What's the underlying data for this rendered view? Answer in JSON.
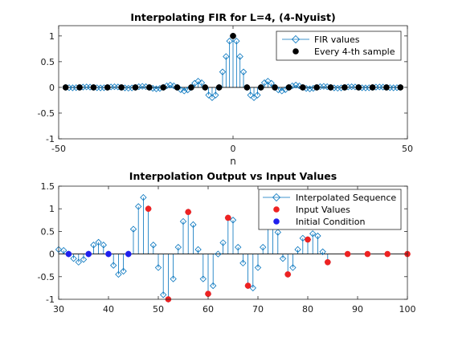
{
  "chart_data": [
    {
      "type": "stem",
      "title": "Interpolating FIR for L=4,  (4-Nyuist)",
      "xlabel": "n",
      "ylabel": "",
      "xlim": [
        -50,
        50
      ],
      "ylim": [
        -1,
        1.2
      ],
      "xticks": [
        "-50",
        "0",
        "50"
      ],
      "yticks": [
        "-1",
        "-0.5",
        "0",
        "0.5",
        "1"
      ],
      "legend_position": "top-right",
      "colors": {
        "fir": "#0072bd",
        "sample": "#000000"
      },
      "series": [
        {
          "name": "FIR values",
          "marker": "diamond-open",
          "x": [
            -48,
            -47,
            -46,
            -45,
            -44,
            -43,
            -42,
            -41,
            -40,
            -39,
            -38,
            -37,
            -36,
            -35,
            -34,
            -33,
            -32,
            -31,
            -30,
            -29,
            -28,
            -27,
            -26,
            -25,
            -24,
            -23,
            -22,
            -21,
            -20,
            -19,
            -18,
            -17,
            -16,
            -15,
            -14,
            -13,
            -12,
            -11,
            -10,
            -9,
            -8,
            -7,
            -6,
            -5,
            -4,
            -3,
            -2,
            -1,
            0,
            1,
            2,
            3,
            4,
            5,
            6,
            7,
            8,
            9,
            10,
            11,
            12,
            13,
            14,
            15,
            16,
            17,
            18,
            19,
            20,
            21,
            22,
            23,
            24,
            25,
            26,
            27,
            28,
            29,
            30,
            31,
            32,
            33,
            34,
            35,
            36,
            37,
            38,
            39,
            40,
            41,
            42,
            43,
            44,
            45,
            46,
            47,
            48
          ],
          "values": [
            0,
            -0.005,
            -0.008,
            -0.005,
            0,
            0.005,
            0.008,
            0.005,
            0,
            -0.007,
            -0.01,
            -0.007,
            0,
            0.008,
            0.012,
            0.008,
            0,
            -0.01,
            -0.015,
            -0.01,
            0,
            0.013,
            0.02,
            0.014,
            0,
            -0.018,
            -0.028,
            -0.02,
            0,
            0.03,
            0.045,
            0.03,
            0,
            -0.045,
            -0.07,
            -0.05,
            0,
            0.08,
            0.12,
            0.09,
            0,
            -0.15,
            -0.2,
            -0.15,
            0,
            0.3,
            0.6,
            0.9,
            1,
            0.9,
            0.6,
            0.3,
            0,
            -0.15,
            -0.2,
            -0.15,
            0,
            0.09,
            0.12,
            0.08,
            0,
            -0.05,
            -0.07,
            -0.045,
            0,
            0.03,
            0.045,
            0.03,
            0,
            -0.02,
            -0.028,
            -0.018,
            0,
            0.014,
            0.02,
            0.013,
            0,
            -0.01,
            -0.015,
            -0.01,
            0,
            0.008,
            0.012,
            0.008,
            0,
            -0.007,
            -0.01,
            -0.007,
            0,
            0.005,
            0.008,
            0.005,
            0,
            -0.005,
            -0.008,
            -0.005,
            0
          ]
        },
        {
          "name": "Every 4-th sample",
          "marker": "dot-filled",
          "x": [
            -48,
            -44,
            -40,
            -36,
            -32,
            -28,
            -24,
            -20,
            -16,
            -12,
            -8,
            -4,
            0,
            4,
            8,
            12,
            16,
            20,
            24,
            28,
            32,
            36,
            40,
            44,
            48
          ],
          "values": [
            0,
            0,
            0,
            0,
            0,
            0,
            0,
            0,
            0,
            0,
            0,
            0,
            1,
            0,
            0,
            0,
            0,
            0,
            0,
            0,
            0,
            0,
            0,
            0,
            0
          ]
        }
      ]
    },
    {
      "type": "stem",
      "title": "Interpolation Output vs Input Values",
      "xlabel": "",
      "ylabel": "",
      "xlim": [
        30,
        100
      ],
      "ylim": [
        -1,
        1.5
      ],
      "xticks": [
        "30",
        "40",
        "50",
        "60",
        "70",
        "80",
        "90",
        "100"
      ],
      "yticks": [
        "-1",
        "-0.5",
        "0",
        "0.5",
        "1",
        "1.5"
      ],
      "legend_position": "top-right",
      "colors": {
        "interp": "#0072bd",
        "input": "#ee2222",
        "initial": "#2020ee"
      },
      "series": [
        {
          "name": "Interpolated Sequence",
          "marker": "diamond-open",
          "x": [
            30,
            31,
            32,
            33,
            34,
            35,
            36,
            37,
            38,
            39,
            40,
            41,
            42,
            43,
            44,
            45,
            46,
            47,
            48,
            49,
            50,
            51,
            52,
            53,
            54,
            55,
            56,
            57,
            58,
            59,
            60,
            61,
            62,
            63,
            64,
            65,
            66,
            67,
            68,
            69,
            70,
            71,
            72,
            73,
            74,
            75,
            76,
            77,
            78,
            79,
            80,
            81,
            82,
            83,
            84
          ],
          "values": [
            0.1,
            0.08,
            0,
            -0.1,
            -0.18,
            -0.12,
            0,
            0.2,
            0.26,
            0.2,
            0,
            -0.25,
            -0.45,
            -0.38,
            0,
            0.55,
            1.05,
            1.25,
            1,
            0.2,
            -0.3,
            -0.9,
            -1,
            -0.55,
            0.15,
            0.72,
            0.93,
            0.65,
            0.1,
            -0.55,
            -0.88,
            -0.7,
            0,
            0.25,
            0.8,
            0.75,
            0.15,
            -0.2,
            -0.7,
            -0.75,
            -0.3,
            0.15,
            0.75,
            0.9,
            0.48,
            -0.1,
            -0.45,
            -0.3,
            0.1,
            0.35,
            0.32,
            0.45,
            0.4,
            0.05,
            -0.18
          ]
        },
        {
          "name": "Input Values",
          "marker": "dot-filled",
          "x": [
            48,
            52,
            56,
            60,
            64,
            68,
            72,
            76,
            80,
            84,
            88,
            92,
            96,
            100
          ],
          "values": [
            1,
            -1,
            0.93,
            -0.88,
            0.8,
            -0.7,
            0.75,
            -0.45,
            0.32,
            -0.18,
            0,
            0,
            0,
            0
          ]
        },
        {
          "name": "Initial Condition",
          "marker": "dot-filled",
          "x": [
            32,
            36,
            40,
            44
          ],
          "values": [
            0,
            0,
            0,
            0
          ]
        }
      ]
    }
  ]
}
